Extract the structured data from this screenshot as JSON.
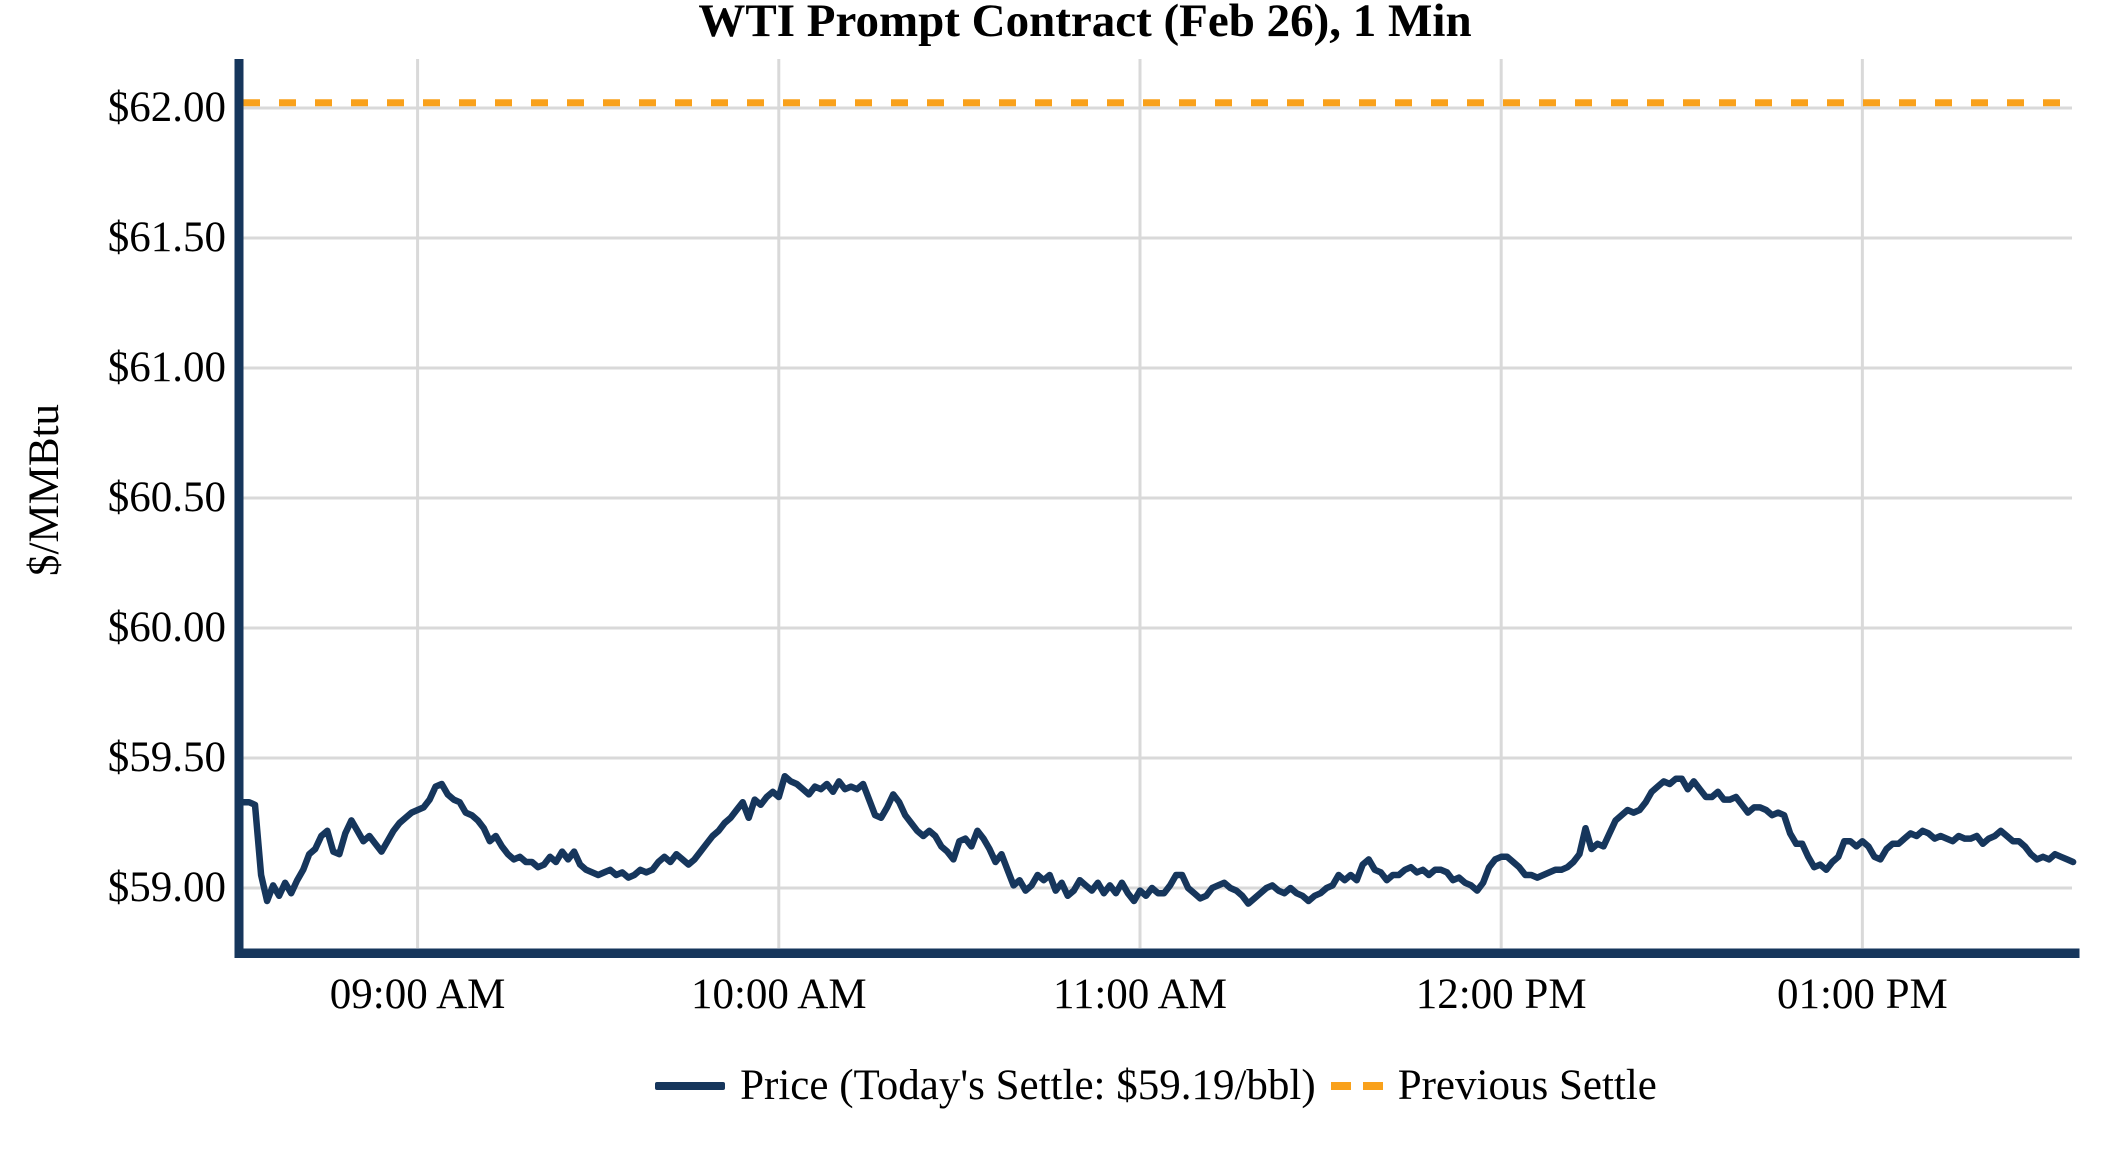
{
  "chart_data": {
    "type": "line",
    "title": "WTI Prompt Contract (Feb 26), 1 Min",
    "ylabel": "$/MMBtu",
    "grid": true,
    "legend_position": "bottom-center",
    "background": "#FFFFFF",
    "gridline_color": "#D9D9D9",
    "axis_color": "#16365C",
    "x_axis": {
      "start_time": "08:31 AM",
      "end_time": "01:35 PM",
      "interval_minutes": 1,
      "tick_labels": [
        "09:00 AM",
        "10:00 AM",
        "11:00 AM",
        "12:00 PM",
        "01:00 PM"
      ],
      "tick_minutes_from_start": [
        29,
        89,
        149,
        209,
        269
      ]
    },
    "y_axis": {
      "tick_labels": [
        "$62.00",
        "$61.50",
        "$61.00",
        "$60.50",
        "$60.00",
        "$59.50",
        "$59.00"
      ],
      "tick_values": [
        62.0,
        61.5,
        61.0,
        60.5,
        60.0,
        59.5,
        59.0
      ],
      "ylim": [
        58.76,
        62.19
      ]
    },
    "series": [
      {
        "name": "Price (Today's Settle: $59.19/bbl)",
        "type": "line",
        "style": "solid",
        "color": "#16365C",
        "today_settle": "$59.19/bbl",
        "values": [
          59.33,
          59.33,
          59.32,
          59.05,
          58.95,
          59.01,
          58.97,
          59.02,
          58.98,
          59.03,
          59.07,
          59.13,
          59.15,
          59.2,
          59.22,
          59.14,
          59.13,
          59.21,
          59.26,
          59.22,
          59.18,
          59.2,
          59.17,
          59.14,
          59.18,
          59.22,
          59.25,
          59.27,
          59.29,
          59.3,
          59.31,
          59.34,
          59.39,
          59.4,
          59.36,
          59.34,
          59.33,
          59.29,
          59.28,
          59.26,
          59.23,
          59.18,
          59.2,
          59.16,
          59.13,
          59.11,
          59.12,
          59.1,
          59.1,
          59.08,
          59.09,
          59.12,
          59.1,
          59.14,
          59.11,
          59.14,
          59.09,
          59.07,
          59.06,
          59.05,
          59.06,
          59.07,
          59.05,
          59.06,
          59.04,
          59.05,
          59.07,
          59.06,
          59.07,
          59.1,
          59.12,
          59.1,
          59.13,
          59.11,
          59.09,
          59.11,
          59.14,
          59.17,
          59.2,
          59.22,
          59.25,
          59.27,
          59.3,
          59.33,
          59.27,
          59.34,
          59.32,
          59.35,
          59.37,
          59.35,
          59.43,
          59.41,
          59.4,
          59.38,
          59.36,
          59.39,
          59.38,
          59.4,
          59.37,
          59.41,
          59.38,
          59.39,
          59.38,
          59.4,
          59.34,
          59.28,
          59.27,
          59.31,
          59.36,
          59.33,
          59.28,
          59.25,
          59.22,
          59.2,
          59.22,
          59.2,
          59.16,
          59.14,
          59.11,
          59.18,
          59.19,
          59.16,
          59.22,
          59.19,
          59.15,
          59.1,
          59.13,
          59.07,
          59.01,
          59.03,
          58.99,
          59.01,
          59.05,
          59.03,
          59.05,
          58.99,
          59.02,
          58.97,
          58.99,
          59.03,
          59.01,
          58.99,
          59.02,
          58.98,
          59.01,
          58.98,
          59.02,
          58.98,
          58.95,
          58.99,
          58.97,
          59.0,
          58.98,
          58.98,
          59.01,
          59.05,
          59.05,
          59.0,
          58.98,
          58.96,
          58.97,
          59.0,
          59.01,
          59.02,
          59.0,
          58.99,
          58.97,
          58.94,
          58.96,
          58.98,
          59.0,
          59.01,
          58.99,
          58.98,
          59.0,
          58.98,
          58.97,
          58.95,
          58.97,
          58.98,
          59.0,
          59.01,
          59.05,
          59.03,
          59.05,
          59.03,
          59.09,
          59.11,
          59.07,
          59.06,
          59.03,
          59.05,
          59.05,
          59.07,
          59.08,
          59.06,
          59.07,
          59.05,
          59.07,
          59.07,
          59.06,
          59.03,
          59.04,
          59.02,
          59.01,
          58.99,
          59.02,
          59.08,
          59.11,
          59.12,
          59.12,
          59.1,
          59.08,
          59.05,
          59.05,
          59.04,
          59.05,
          59.06,
          59.07,
          59.07,
          59.08,
          59.1,
          59.13,
          59.23,
          59.15,
          59.17,
          59.16,
          59.21,
          59.26,
          59.28,
          59.3,
          59.29,
          59.3,
          59.33,
          59.37,
          59.39,
          59.41,
          59.4,
          59.42,
          59.42,
          59.38,
          59.41,
          59.38,
          59.35,
          59.35,
          59.37,
          59.34,
          59.34,
          59.35,
          59.32,
          59.29,
          59.31,
          59.31,
          59.3,
          59.28,
          59.29,
          59.28,
          59.21,
          59.17,
          59.17,
          59.12,
          59.08,
          59.09,
          59.07,
          59.1,
          59.12,
          59.18,
          59.18,
          59.16,
          59.18,
          59.16,
          59.12,
          59.11,
          59.15,
          59.17,
          59.17,
          59.19,
          59.21,
          59.2,
          59.22,
          59.21,
          59.19,
          59.2,
          59.19,
          59.18,
          59.2,
          59.19,
          59.19,
          59.2,
          59.17,
          59.19,
          59.2,
          59.22,
          59.2,
          59.18,
          59.18,
          59.16,
          59.13,
          59.11,
          59.12,
          59.11,
          59.13,
          59.12,
          59.11,
          59.1
        ]
      },
      {
        "name": "Previous Settle",
        "type": "hline",
        "style": "dashed",
        "color": "#F9A11B",
        "value": 62.02
      }
    ]
  }
}
